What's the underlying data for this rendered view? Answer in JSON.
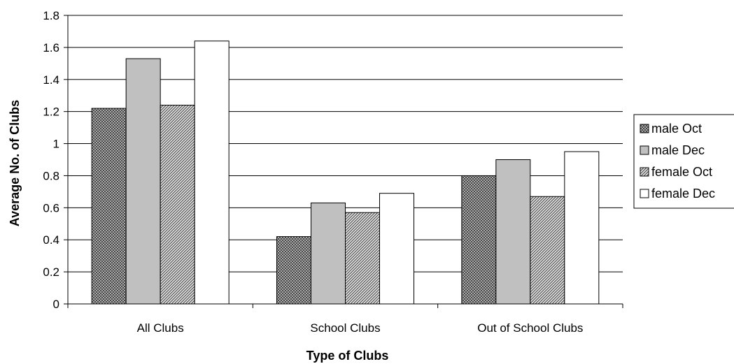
{
  "chart_data": {
    "type": "bar",
    "title": "",
    "xlabel": "Type of Clubs",
    "ylabel": "Average No. of Clubs",
    "categories": [
      "All Clubs",
      "School Clubs",
      "Out of School Clubs"
    ],
    "series": [
      {
        "name": "male Oct",
        "values": [
          1.22,
          0.42,
          0.8
        ],
        "fill": "cross-hatch",
        "color": "#555555"
      },
      {
        "name": "male Dec",
        "values": [
          1.53,
          0.63,
          0.9
        ],
        "fill": "solid",
        "color": "#c0c0c0"
      },
      {
        "name": "female Oct",
        "values": [
          1.24,
          0.57,
          0.67
        ],
        "fill": "diagonal-hatch",
        "color": "#555555"
      },
      {
        "name": "female Dec",
        "values": [
          1.64,
          0.69,
          0.95
        ],
        "fill": "solid",
        "color": "#ffffff"
      }
    ],
    "ylim": [
      0,
      1.8
    ],
    "yticks": [
      "0",
      "0.2",
      "0.4",
      "0.6",
      "0.8",
      "1",
      "1.2",
      "1.4",
      "1.6",
      "1.8"
    ],
    "grid": true,
    "legend_position": "right"
  }
}
